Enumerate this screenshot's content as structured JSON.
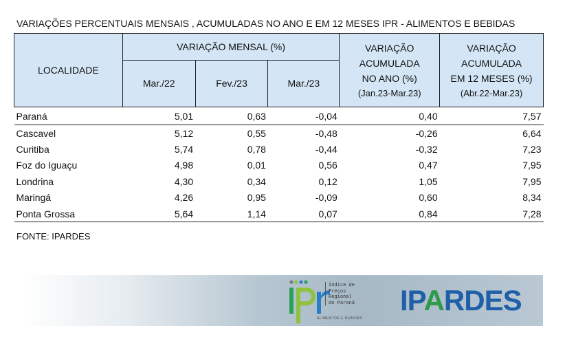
{
  "title": "VARIAÇÕES PERCENTUAIS MENSAIS , ACUMULADAS NO ANO E EM 12 MESES IPR - ALIMENTOS E BEBIDAS",
  "table": {
    "header": {
      "localidade": "LOCALIDADE",
      "variacao_mensal": "VARIAÇÃO MENSAL (%)",
      "months": [
        "Mar./22",
        "Fev./23",
        "Mar./23"
      ],
      "acum_ano": {
        "l1": "VARIAÇÃO",
        "l2": "ACUMULADA",
        "l3": "NO ANO (%)",
        "l4": "(Jan.23-Mar.23)"
      },
      "acum_12": {
        "l1": "VARIAÇÃO",
        "l2": "ACUMULADA",
        "l3": "EM 12 MESES (%)",
        "l4": "(Abr.22-Mar.23)"
      }
    },
    "rows": [
      {
        "loc": "Paraná",
        "v": [
          "5,01",
          "0,63",
          "-0,04",
          "0,40",
          "7,57"
        ]
      },
      {
        "loc": "Cascavel",
        "v": [
          "5,12",
          "0,55",
          "-0,48",
          "-0,26",
          "6,64"
        ]
      },
      {
        "loc": "Curitiba",
        "v": [
          "5,74",
          "0,78",
          "-0,44",
          "-0,32",
          "7,23"
        ]
      },
      {
        "loc": "Foz do Iguaçu",
        "v": [
          "4,98",
          "0,01",
          "0,56",
          "0,47",
          "7,95"
        ]
      },
      {
        "loc": "Londrina",
        "v": [
          "4,30",
          "0,34",
          "0,12",
          "1,05",
          "7,95"
        ]
      },
      {
        "loc": "Maringá",
        "v": [
          "4,26",
          "0,95",
          "-0,09",
          "0,60",
          "8,34"
        ]
      },
      {
        "loc": "Ponta Grossa",
        "v": [
          "5,64",
          "1,14",
          "0,07",
          "0,84",
          "7,28"
        ]
      }
    ]
  },
  "source": "FONTE: IPARDES",
  "footer": {
    "ipr_mark": "ipr",
    "ipr_lines": [
      "Índice de",
      "Preços",
      "Regional",
      "do Paraná"
    ],
    "ipr_sub": "ALIMENTOS E BEBIDAS",
    "ipardes_logo": "IPARDES"
  },
  "colors": {
    "header_bg": "#d4e6f6",
    "ipardes_blue": "#1f5fa8",
    "ipardes_green": "#2e9a4a"
  }
}
